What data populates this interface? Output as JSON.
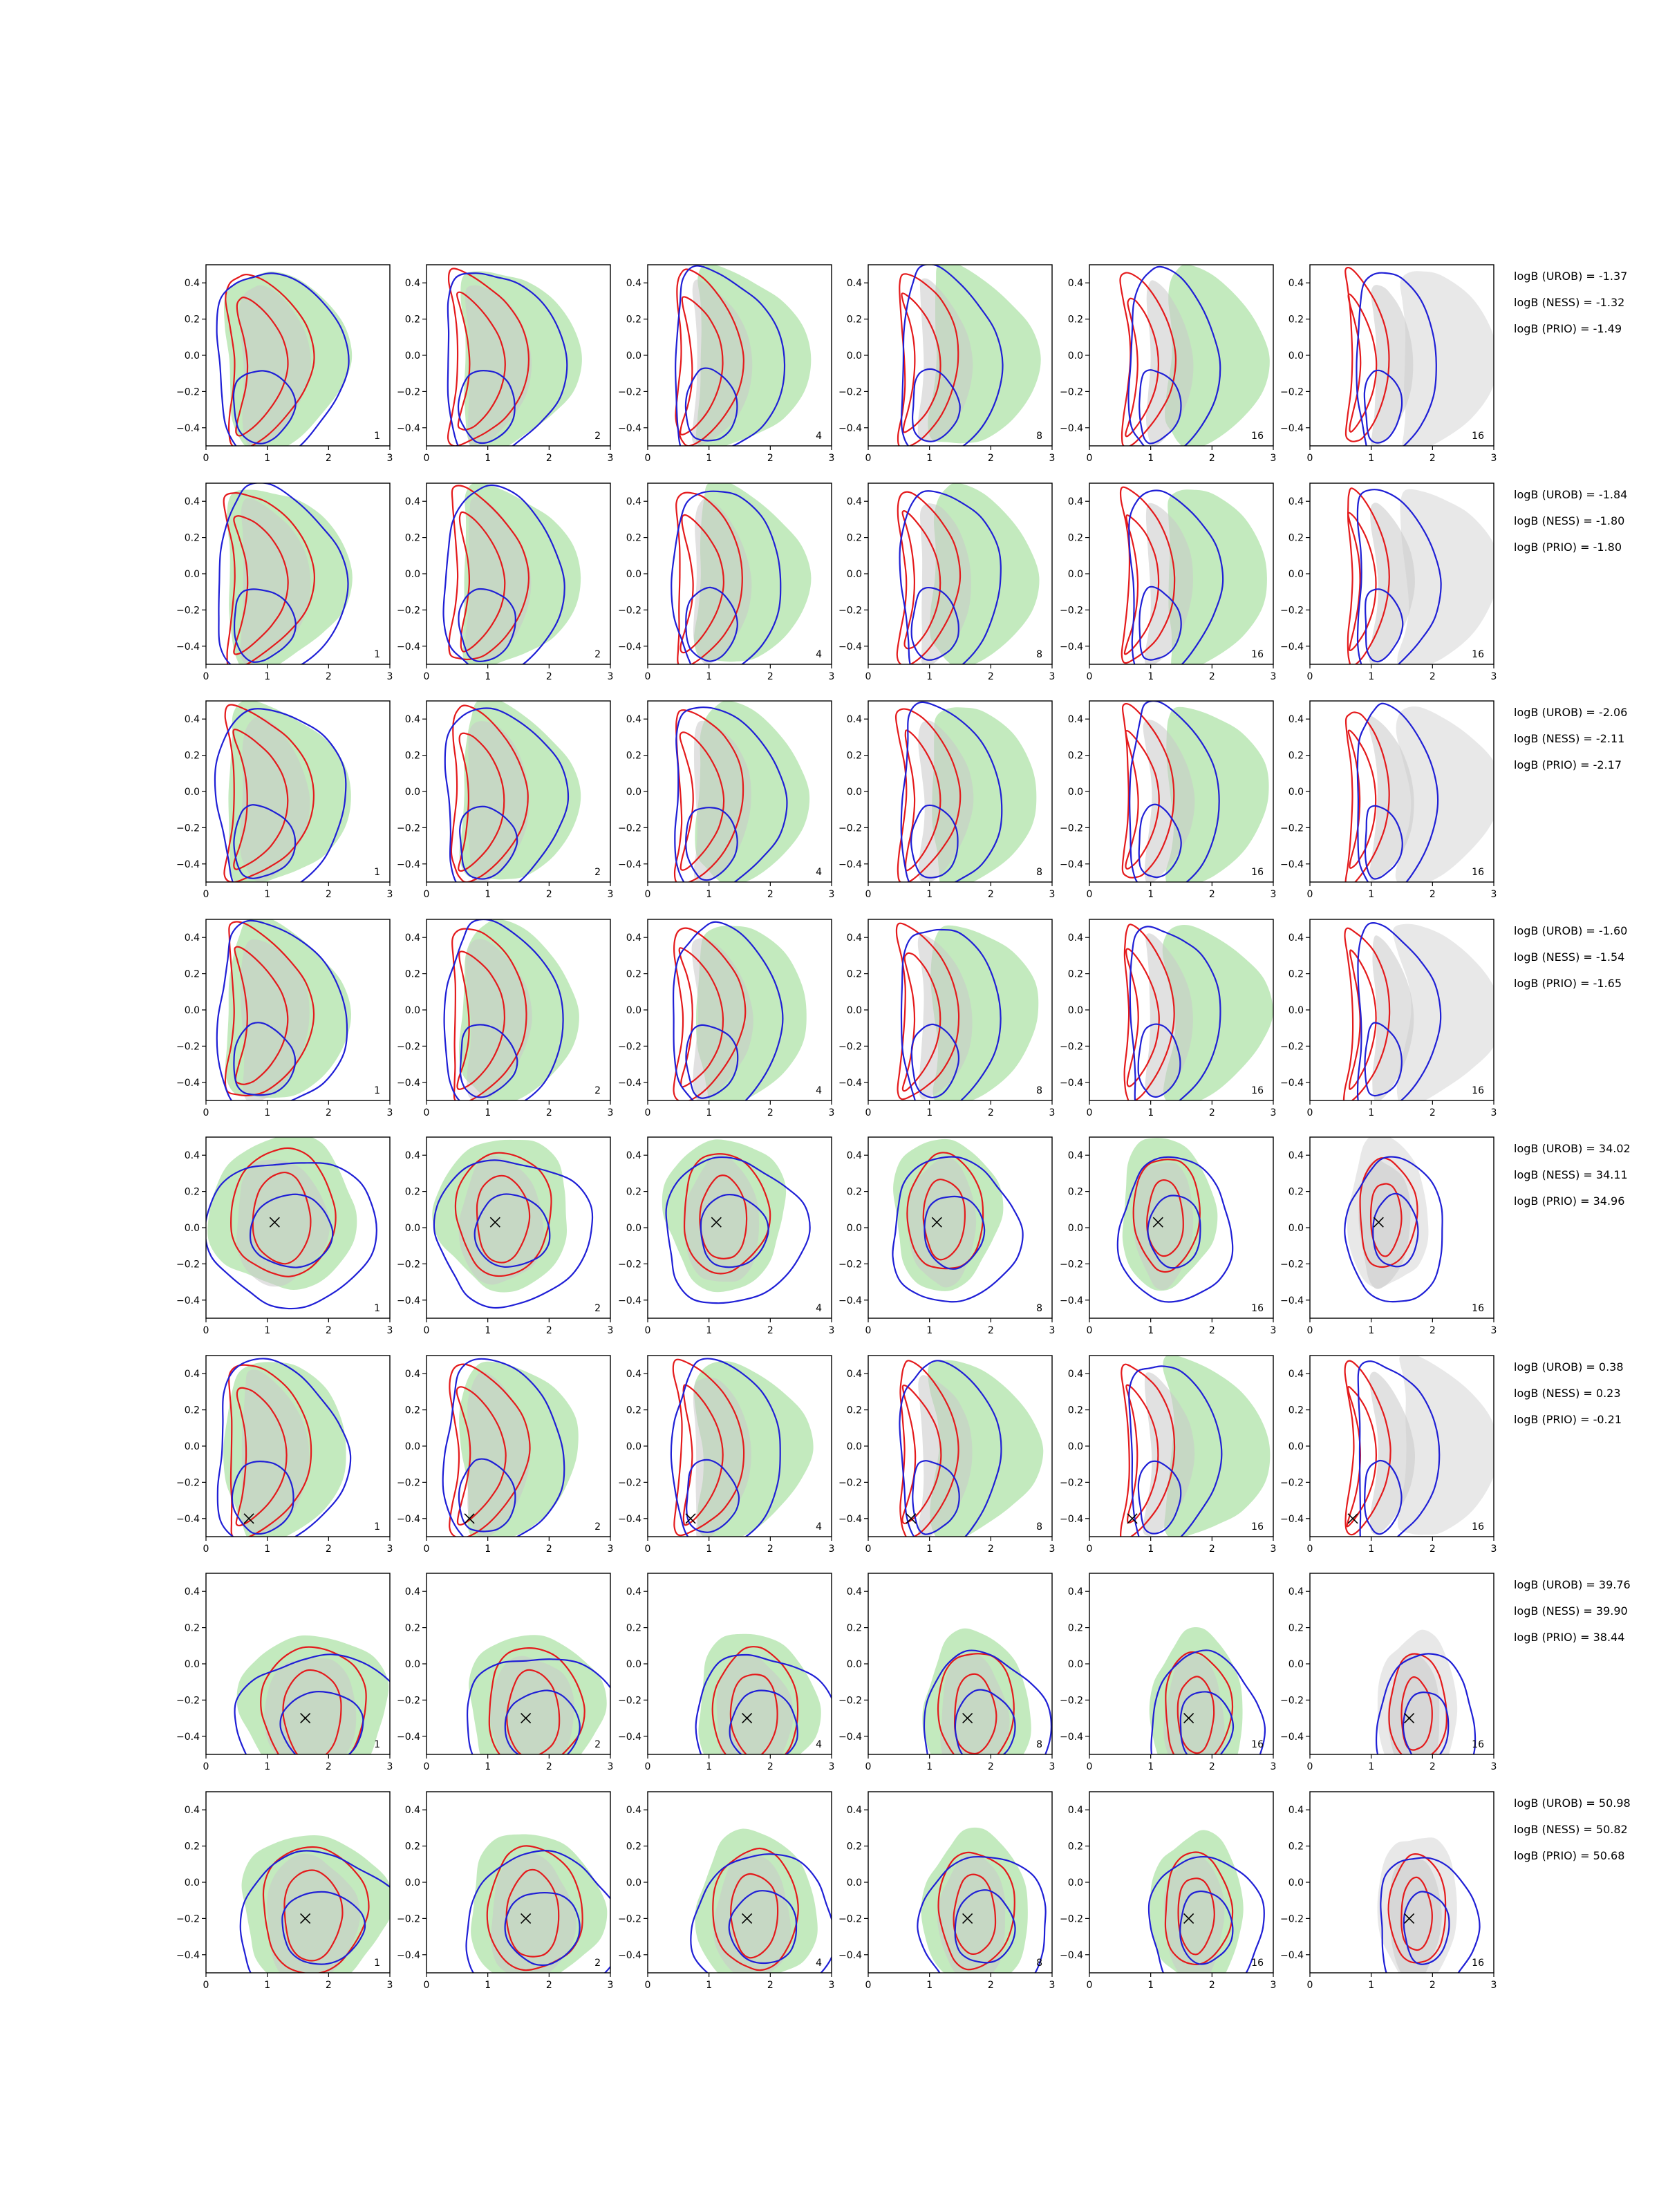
{
  "figure": {
    "type": "grid of 2D posterior contour plots",
    "x_tick_labels": [
      "0",
      "1",
      "2",
      "3"
    ],
    "y_tick_labels": [
      "0.4",
      "0.2",
      "0.0",
      "−0.2",
      "−0.4"
    ]
  },
  "colors": {
    "green_fill": "#b8e6b3",
    "gray_fill": "#c9c9c9",
    "red_contour": "#e41a1c",
    "blue_contour": "#1f1fd6",
    "marker": "#000000"
  },
  "chart_data": {
    "type": "contour-grid",
    "rows": 8,
    "columns": 6,
    "xlim": [
      0,
      3
    ],
    "ylim": [
      -0.5,
      0.5
    ],
    "x_ticks": [
      0,
      1,
      2,
      3
    ],
    "y_ticks": [
      0.4,
      0.2,
      0.0,
      -0.2,
      -0.4
    ],
    "panel_labels": [
      [
        "1",
        "2",
        "4",
        "8",
        "16",
        "16"
      ],
      [
        "1",
        "2",
        "4",
        "8",
        "16",
        "16"
      ],
      [
        "1",
        "2",
        "4",
        "8",
        "16",
        "16"
      ],
      [
        "1",
        "2",
        "4",
        "8",
        "16",
        "16"
      ],
      [
        "1",
        "2",
        "4",
        "8",
        "16",
        "16"
      ],
      [
        "1",
        "2",
        "4",
        "8",
        "16",
        "16"
      ],
      [
        "1",
        "2",
        "4",
        "8",
        "16",
        "16"
      ],
      [
        "1",
        "2",
        "4",
        "8",
        "16",
        "16"
      ]
    ],
    "rows_data": [
      {
        "truth": null,
        "logB": [
          "logB (UROB) = -1.37",
          "logB (NESS) = -1.32",
          "logB (PRIO) = -1.49"
        ]
      },
      {
        "truth": null,
        "logB": [
          "logB (UROB) = -1.84",
          "logB (NESS) = -1.80",
          "logB (PRIO) = -1.80"
        ]
      },
      {
        "truth": null,
        "logB": [
          "logB (UROB) = -2.06",
          "logB (NESS) = -2.11",
          "logB (PRIO) = -2.17"
        ]
      },
      {
        "truth": null,
        "logB": [
          "logB (UROB) = -1.60",
          "logB (NESS) = -1.54",
          "logB (PRIO) = -1.65"
        ]
      },
      {
        "truth": [
          1.12,
          0.03
        ],
        "logB": [
          "logB (UROB) = 34.02",
          "logB (NESS) = 34.11",
          "logB (PRIO) = 34.96"
        ]
      },
      {
        "truth": [
          0.7,
          -0.4
        ],
        "logB": [
          "logB (UROB) = 0.38",
          "logB (NESS) = 0.23",
          "logB (PRIO) = -0.21"
        ]
      },
      {
        "truth": [
          1.62,
          -0.3
        ],
        "logB": [
          "logB (UROB) = 39.76",
          "logB (NESS) = 39.90",
          "logB (PRIO) = 38.44"
        ]
      },
      {
        "truth": [
          1.62,
          -0.2
        ],
        "logB": [
          "logB (UROB) = 50.98",
          "logB (NESS) = 50.82",
          "logB (PRIO) = 50.68"
        ]
      }
    ]
  }
}
